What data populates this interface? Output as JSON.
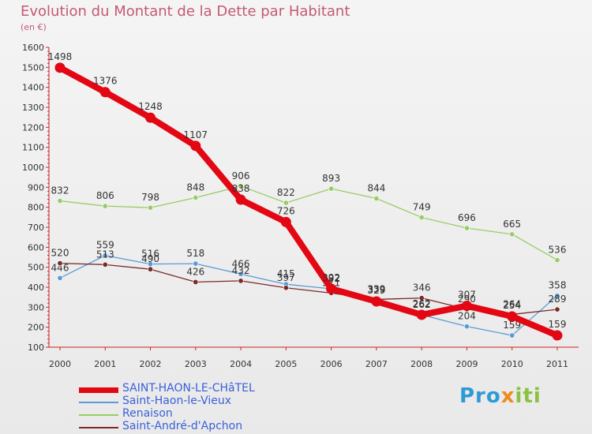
{
  "title": "Evolution du Montant de la Dette par Habitant",
  "unit": "(en €)",
  "brand": "Proxiti",
  "chart_data": {
    "type": "line",
    "x": [
      "2000",
      "2001",
      "2002",
      "2003",
      "2004",
      "2005",
      "2006",
      "2007",
      "2008",
      "2009",
      "2010",
      "2011"
    ],
    "ylim": [
      100,
      1600
    ],
    "yticks": [
      100,
      200,
      300,
      400,
      500,
      600,
      700,
      800,
      900,
      1000,
      1100,
      1200,
      1300,
      1400,
      1500,
      1600
    ],
    "grid": false,
    "legend_position": "bottom-left",
    "series": [
      {
        "name": "SAINT-HAON-LE-CHâTEL",
        "color": "#e30613",
        "values": [
          1498,
          1376,
          1248,
          1107,
          838,
          726,
          392,
          329,
          262,
          307,
          254,
          159
        ]
      },
      {
        "name": "Saint-Haon-le-Vieux",
        "color": "#5b9bd5",
        "values": [
          446,
          559,
          516,
          518,
          466,
          415,
          392,
          339,
          262,
          204,
          159,
          358
        ]
      },
      {
        "name": "Renaison",
        "color": "#99cc66",
        "values": [
          832,
          806,
          798,
          848,
          906,
          822,
          893,
          844,
          749,
          696,
          665,
          536
        ]
      },
      {
        "name": "Saint-André-d'Apchon",
        "color": "#7b2a2a",
        "values": [
          520,
          513,
          490,
          426,
          432,
          397,
          371,
          339,
          346,
          290,
          264,
          289
        ]
      }
    ]
  }
}
